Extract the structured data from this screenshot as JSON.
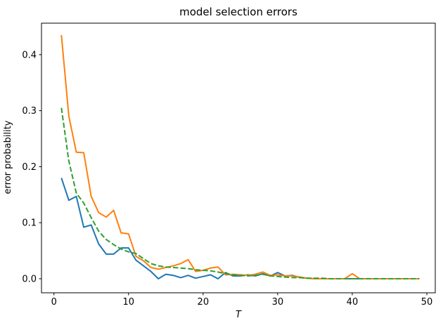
{
  "figure": {
    "title": "model selection errors",
    "xlabel": "T",
    "ylabel": "error probability"
  },
  "chart_data": {
    "type": "line",
    "title": "model selection errors",
    "xlabel": "T",
    "ylabel": "error probability",
    "grid": false,
    "legend": "none",
    "xlim": [
      -1.67,
      51.13
    ],
    "ylim": [
      -0.0251,
      0.4562
    ],
    "xticks": [
      "0",
      "10",
      "20",
      "30",
      "40",
      "50"
    ],
    "xtick_values": [
      0,
      10,
      20,
      30,
      40,
      50
    ],
    "yticks": [
      "0.0",
      "0.1",
      "0.2",
      "0.3",
      "0.4"
    ],
    "ytick_values": [
      0,
      0.1,
      0.2,
      0.3,
      0.4
    ],
    "line_width": 2,
    "x": [
      1,
      2,
      3,
      4,
      5,
      6,
      7,
      8,
      9,
      10,
      11,
      12,
      13,
      14,
      15,
      16,
      17,
      18,
      19,
      20,
      21,
      22,
      23,
      24,
      25,
      26,
      27,
      28,
      29,
      30,
      31,
      32,
      33,
      34,
      35,
      36,
      37,
      38,
      39,
      40,
      41,
      42,
      43,
      44,
      45,
      46,
      47,
      48,
      49
    ],
    "series": [
      {
        "name": "blue-solid",
        "color": "#1f77b4",
        "style": "solid",
        "values": [
          0.18,
          0.14,
          0.147,
          0.092,
          0.096,
          0.062,
          0.044,
          0.044,
          0.055,
          0.055,
          0.033,
          0.023,
          0.013,
          0.0,
          0.008,
          0.006,
          0.002,
          0.006,
          0.001,
          0.004,
          0.007,
          0.0,
          0.011,
          0.005,
          0.005,
          0.007,
          0.005,
          0.009,
          0.005,
          0.011,
          0.005,
          0.006,
          0.002,
          0.001,
          0.0,
          0.0,
          0.0,
          0.0,
          0.0,
          0.0,
          0.0,
          0.0,
          0.0,
          0.0,
          0.0,
          0.0,
          0.0,
          0.0,
          0.0
        ]
      },
      {
        "name": "orange-solid",
        "color": "#ff7f0e",
        "style": "solid",
        "values": [
          0.435,
          0.29,
          0.226,
          0.225,
          0.147,
          0.118,
          0.11,
          0.122,
          0.082,
          0.08,
          0.04,
          0.032,
          0.02,
          0.017,
          0.02,
          0.023,
          0.027,
          0.034,
          0.013,
          0.015,
          0.019,
          0.021,
          0.007,
          0.008,
          0.007,
          0.006,
          0.008,
          0.012,
          0.006,
          0.007,
          0.005,
          0.005,
          0.003,
          0.001,
          0.0,
          0.0,
          0.0,
          0.0,
          0.0,
          0.009,
          0.0,
          0.0,
          0.0,
          0.0,
          0.0,
          0.0,
          0.0,
          0.0,
          0.0
        ]
      },
      {
        "name": "green-dashed",
        "color": "#2ca02c",
        "style": "dashed",
        "values": [
          0.305,
          0.21,
          0.153,
          0.135,
          0.109,
          0.085,
          0.07,
          0.061,
          0.053,
          0.048,
          0.045,
          0.036,
          0.027,
          0.023,
          0.021,
          0.02,
          0.019,
          0.018,
          0.016,
          0.015,
          0.014,
          0.012,
          0.009,
          0.007,
          0.006,
          0.005,
          0.006,
          0.008,
          0.005,
          0.004,
          0.003,
          0.002,
          0.002,
          0.001,
          0.001,
          0.001,
          0.0,
          0.0,
          0.0,
          0.0,
          0.0,
          0.0,
          0.0,
          0.0,
          0.0,
          0.0,
          0.0,
          0.0,
          0.0
        ]
      }
    ]
  }
}
